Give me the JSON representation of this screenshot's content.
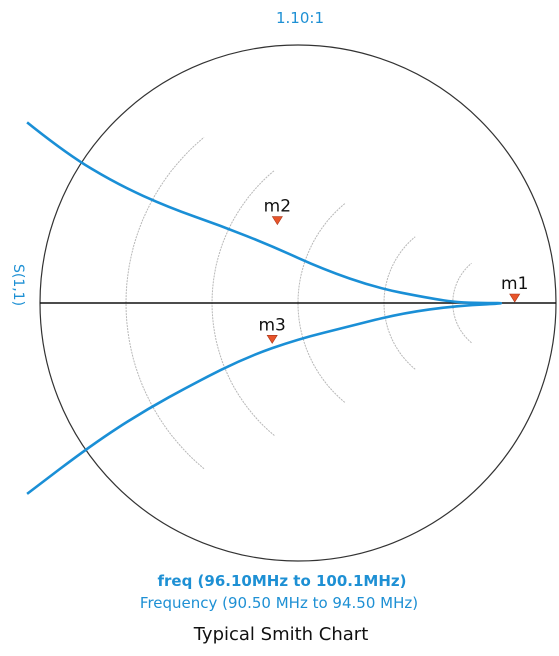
{
  "chart_data": {
    "type": "smith",
    "top_label": "1.10:1",
    "side_label": "S(1,1)",
    "x_label_primary": "freq (96.10MHz to 100.1MHz)",
    "x_label_secondary": "Frequency (90.50 MHz to 94.50 MHz)",
    "caption": "Typical Smith Chart",
    "grid": true,
    "colors": {
      "trace": "#1a8fd6",
      "grid": "#b8b8b8",
      "outline": "#333333",
      "marker": "#e8542a",
      "text_blue": "#1e90d4"
    },
    "markers": [
      {
        "name": "m1",
        "gamma": [
          0.84,
          0.0
        ]
      },
      {
        "name": "m2",
        "gamma": [
          -0.08,
          0.3
        ]
      },
      {
        "name": "m3",
        "gamma": [
          -0.1,
          -0.16
        ]
      }
    ],
    "series": [
      {
        "points": [
          [
            -1.05,
            0.7
          ],
          [
            -0.9,
            0.58
          ],
          [
            -0.7,
            0.46
          ],
          [
            -0.5,
            0.37
          ],
          [
            -0.3,
            0.3
          ],
          [
            -0.1,
            0.22
          ],
          [
            0.1,
            0.13
          ],
          [
            0.3,
            0.06
          ],
          [
            0.5,
            0.02
          ],
          [
            0.63,
            0.0
          ],
          [
            0.84,
            0.0
          ],
          [
            0.62,
            -0.01
          ],
          [
            0.4,
            -0.04
          ],
          [
            0.2,
            -0.09
          ],
          [
            0.0,
            -0.14
          ],
          [
            -0.2,
            -0.21
          ],
          [
            -0.4,
            -0.31
          ],
          [
            -0.6,
            -0.42
          ],
          [
            -0.8,
            -0.55
          ],
          [
            -1.05,
            -0.74
          ]
        ]
      }
    ]
  }
}
